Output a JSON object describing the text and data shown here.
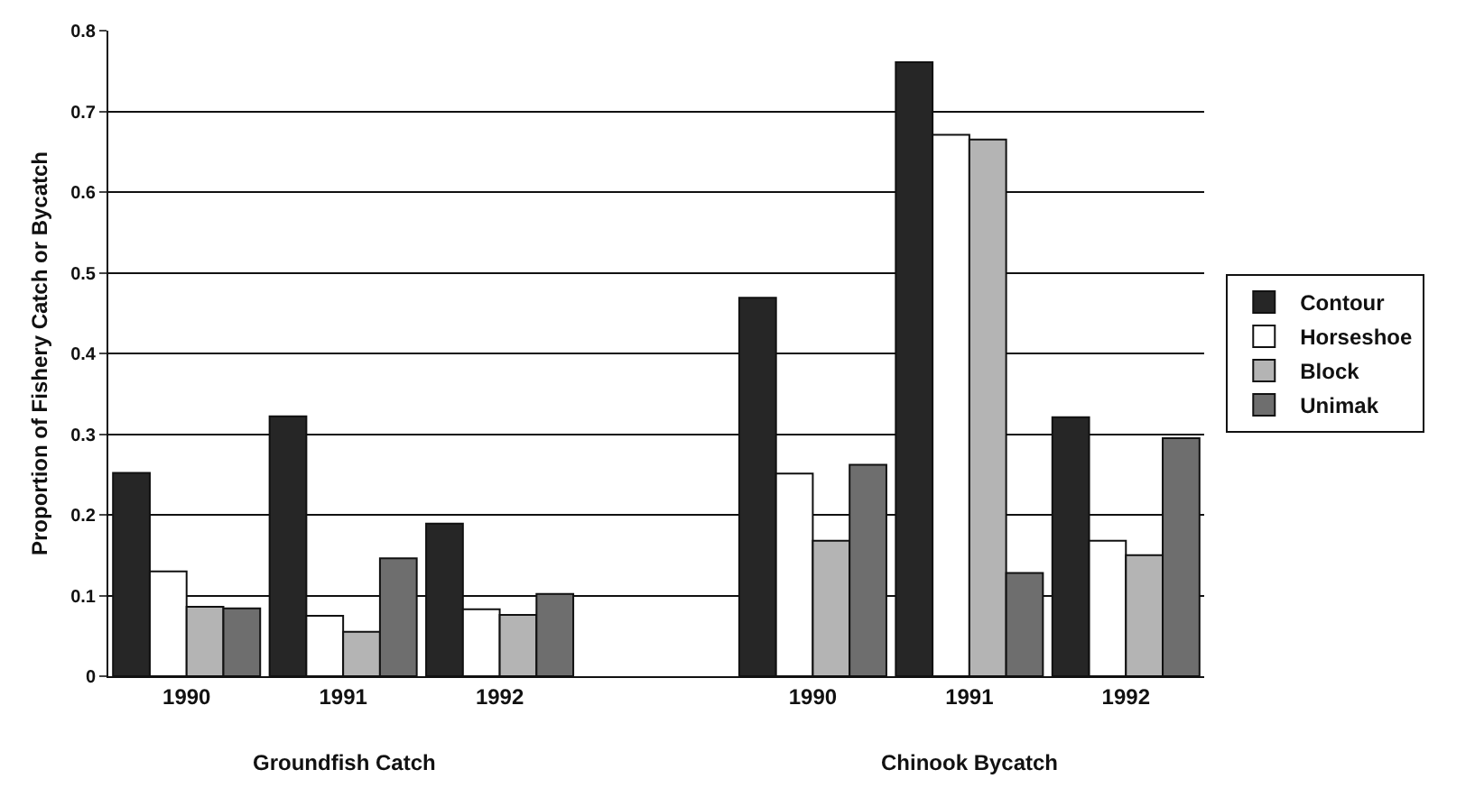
{
  "chart_data": {
    "type": "bar",
    "ylabel": "Proportion of Fishery Catch or Bycatch",
    "categories": [
      "1990",
      "1991",
      "1992",
      null,
      "1990",
      "1991",
      "1992"
    ],
    "series": [
      {
        "name": "Contour",
        "color": "#262626",
        "values": [
          0.252,
          0.322,
          0.189,
          null,
          0.469,
          0.761,
          0.321
        ]
      },
      {
        "name": "Horseshoe",
        "color": "#ffffff",
        "values": [
          0.13,
          0.075,
          0.083,
          null,
          0.251,
          0.671,
          0.168
        ]
      },
      {
        "name": "Block",
        "color": "#b4b4b4",
        "values": [
          0.086,
          0.055,
          0.076,
          null,
          0.168,
          0.665,
          0.15
        ]
      },
      {
        "name": "Unimak",
        "color": "#6e6e6e",
        "values": [
          0.084,
          0.146,
          0.102,
          null,
          0.262,
          0.128,
          0.295
        ]
      }
    ],
    "annotations": [
      "Groundfish Catch",
      "Chinook Bycatch"
    ],
    "ylim": [
      0,
      0.8
    ],
    "yticks": [
      0,
      0.1,
      0.2,
      0.3,
      0.4,
      0.5,
      0.6,
      0.7,
      0.8
    ],
    "grid": "y",
    "legend": "right"
  }
}
